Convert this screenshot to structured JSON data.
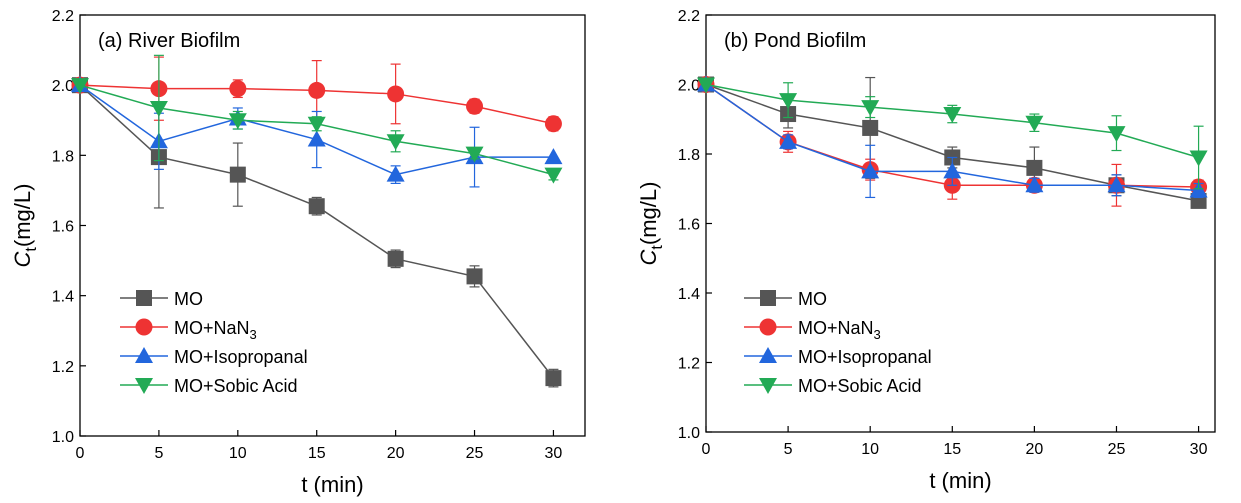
{
  "chart_data": [
    {
      "type": "line",
      "title": "(a) River Biofilm",
      "xlabel": "t (min)",
      "ylabel": {
        "base": "C",
        "sub": "t",
        "rest": "(mg/L)"
      },
      "xlim": [
        0,
        32
      ],
      "ylim": [
        1.0,
        2.2
      ],
      "xticks": [
        0,
        5,
        10,
        15,
        20,
        25,
        30
      ],
      "yticks": [
        1.0,
        1.2,
        1.4,
        1.6,
        1.8,
        2.0,
        2.2
      ],
      "grid": false,
      "legend_position": "bottom-left",
      "x": [
        0,
        5,
        10,
        15,
        20,
        25,
        30
      ],
      "series": [
        {
          "name": "MO",
          "label": {
            "main": "MO"
          },
          "color": "#555555",
          "marker": "square",
          "values": [
            2.0,
            1.795,
            1.745,
            1.655,
            1.505,
            1.455,
            1.165
          ],
          "errors": [
            0.0,
            0.145,
            0.09,
            0.025,
            0.025,
            0.03,
            0.025
          ]
        },
        {
          "name": "MO+NaN3",
          "label": {
            "main": "MO+NaN",
            "sub": "3"
          },
          "color": "#ee3333",
          "marker": "circle",
          "values": [
            2.0,
            1.99,
            1.99,
            1.985,
            1.975,
            1.94,
            1.89
          ],
          "errors": [
            0.0,
            0.09,
            0.025,
            0.085,
            0.085,
            0.02,
            0.02
          ]
        },
        {
          "name": "MO+Isopropanal",
          "label": {
            "main": "MO+Isopropanal"
          },
          "color": "#2266dd",
          "marker": "triangle-up",
          "values": [
            2.0,
            1.84,
            1.905,
            1.845,
            1.745,
            1.795,
            1.795
          ],
          "errors": [
            0.0,
            0.08,
            0.03,
            0.08,
            0.025,
            0.085,
            0.0
          ]
        },
        {
          "name": "MO+Sobic Acid",
          "label": {
            "main": "MO+Sobic Acid"
          },
          "color": "#22aa55",
          "marker": "triangle-down",
          "values": [
            2.0,
            1.935,
            1.9,
            1.89,
            1.84,
            1.805,
            1.745
          ],
          "errors": [
            0.0,
            0.15,
            0.025,
            0.02,
            0.03,
            0.015,
            0.015
          ]
        }
      ]
    },
    {
      "type": "line",
      "title": "(b) Pond Biofilm",
      "xlabel": "t (min)",
      "ylabel": {
        "base": "C",
        "sub": "t",
        "rest": "(mg/L)"
      },
      "xlim": [
        0,
        31
      ],
      "ylim": [
        1.0,
        2.2
      ],
      "xticks": [
        0,
        5,
        10,
        15,
        20,
        25,
        30
      ],
      "yticks": [
        1.0,
        1.2,
        1.4,
        1.6,
        1.8,
        2.0,
        2.2
      ],
      "grid": false,
      "legend_position": "bottom-left",
      "x": [
        0,
        5,
        10,
        15,
        20,
        25,
        30
      ],
      "series": [
        {
          "name": "MO",
          "label": {
            "main": "MO"
          },
          "color": "#555555",
          "marker": "square",
          "values": [
            2.0,
            1.915,
            1.875,
            1.79,
            1.76,
            1.71,
            1.665
          ],
          "errors": [
            0.0,
            0.04,
            0.145,
            0.03,
            0.06,
            0.03,
            0.02
          ]
        },
        {
          "name": "MO+NaN3",
          "label": {
            "main": "MO+NaN",
            "sub": "3"
          },
          "color": "#ee3333",
          "marker": "circle",
          "values": [
            2.0,
            1.835,
            1.755,
            1.71,
            1.71,
            1.71,
            1.705
          ],
          "errors": [
            0.0,
            0.03,
            0.03,
            0.04,
            0.02,
            0.06,
            0.02
          ]
        },
        {
          "name": "MO+Isopropanal",
          "label": {
            "main": "MO+Isopropanal"
          },
          "color": "#2266dd",
          "marker": "triangle-up",
          "values": [
            2.0,
            1.835,
            1.75,
            1.75,
            1.71,
            1.71,
            1.695
          ],
          "errors": [
            0.0,
            0.02,
            0.075,
            0.04,
            0.02,
            0.03,
            0.02
          ]
        },
        {
          "name": "MO+Sobic Acid",
          "label": {
            "main": "MO+Sobic Acid"
          },
          "color": "#22aa55",
          "marker": "triangle-down",
          "values": [
            2.0,
            1.955,
            1.935,
            1.915,
            1.89,
            1.86,
            1.79
          ],
          "errors": [
            0.0,
            0.05,
            0.03,
            0.025,
            0.025,
            0.05,
            0.09
          ]
        }
      ]
    }
  ]
}
